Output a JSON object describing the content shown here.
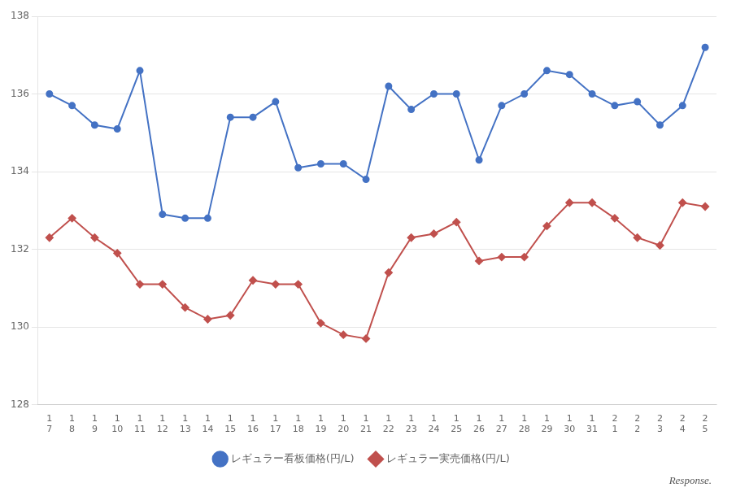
{
  "chart_data": {
    "type": "line",
    "categories": [
      "1\n7",
      "1\n8",
      "1\n9",
      "1\n10",
      "1\n11",
      "1\n12",
      "1\n13",
      "1\n14",
      "1\n15",
      "1\n16",
      "1\n17",
      "1\n18",
      "1\n19",
      "1\n20",
      "1\n21",
      "1\n22",
      "1\n23",
      "1\n24",
      "1\n25",
      "1\n26",
      "1\n27",
      "1\n28",
      "1\n29",
      "1\n30",
      "1\n31",
      "2\n1",
      "2\n2",
      "2\n3",
      "2\n4",
      "2\n5"
    ],
    "series": [
      {
        "name": "レギュラー看板価格(円/L)",
        "color": "#4472C4",
        "marker": "circle",
        "values": [
          136.0,
          135.7,
          135.2,
          135.1,
          136.6,
          132.9,
          132.8,
          132.8,
          135.4,
          135.4,
          135.8,
          134.1,
          134.2,
          134.2,
          133.8,
          136.2,
          135.6,
          136.0,
          136.0,
          134.3,
          135.7,
          136.0,
          136.6,
          136.5,
          136.0,
          135.7,
          135.8,
          135.2,
          135.7,
          137.2
        ]
      },
      {
        "name": "レギュラー実売価格(円/L)",
        "color": "#C0504D",
        "marker": "diamond",
        "values": [
          132.3,
          132.8,
          132.3,
          131.9,
          131.1,
          131.1,
          130.5,
          130.2,
          130.3,
          131.2,
          131.1,
          131.1,
          130.1,
          129.8,
          129.7,
          131.4,
          132.3,
          132.4,
          132.7,
          131.7,
          131.8,
          131.8,
          132.6,
          133.2,
          133.2,
          132.8,
          132.3,
          132.1,
          133.2,
          133.1
        ]
      }
    ],
    "ylim": [
      128,
      138
    ],
    "yticks": [
      128,
      130,
      132,
      134,
      136,
      138
    ],
    "grid": true,
    "legend": "bottom",
    "annotations": [
      "Response."
    ]
  }
}
